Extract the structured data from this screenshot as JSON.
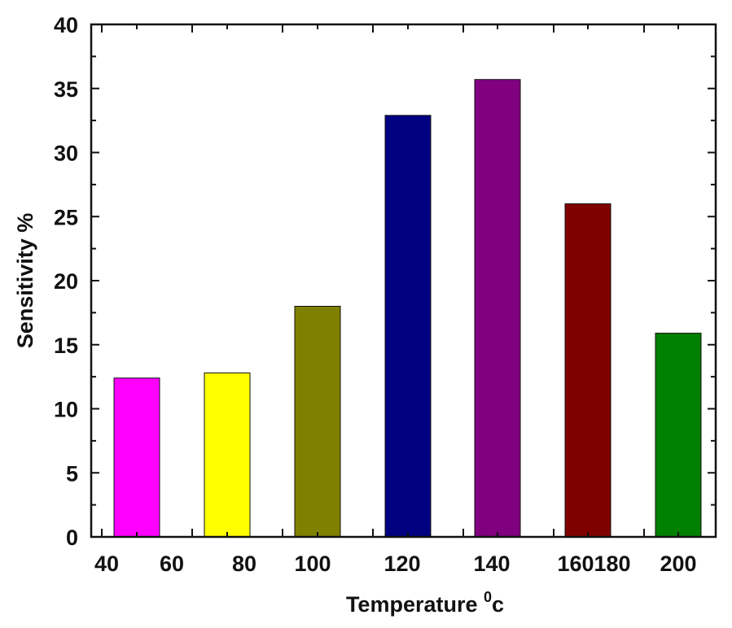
{
  "chart_data": {
    "type": "bar",
    "title": "",
    "xlabel": "Temperature",
    "xlabel_superscript": "0",
    "xlabel_suffix": "c",
    "ylabel": "Sensitivity %",
    "xlim": [
      40,
      215
    ],
    "ylim": [
      0,
      40
    ],
    "x_ticks": [
      40,
      60,
      80,
      100,
      120,
      140,
      160,
      180,
      200
    ],
    "y_ticks": [
      0,
      5,
      10,
      15,
      20,
      25,
      30,
      35,
      40
    ],
    "grid": false,
    "legend": "none",
    "bar_width": 10,
    "bars": [
      {
        "x": 50,
        "value": 12.4,
        "color": "#ff00ff"
      },
      {
        "x": 70,
        "value": 12.8,
        "color": "#ffff00"
      },
      {
        "x": 90,
        "value": 18.0,
        "color": "#808000"
      },
      {
        "x": 110,
        "value": 32.9,
        "color": "#000080"
      },
      {
        "x": 130,
        "value": 35.7,
        "color": "#800080"
      },
      {
        "x": 150,
        "value": 26.0,
        "color": "#800000"
      },
      {
        "x": 170,
        "value": 15.9,
        "color": "#008000"
      }
    ],
    "x_tick_positions": [
      40,
      50,
      70,
      90,
      110,
      130,
      150,
      170
    ],
    "x_tick_labels_positions": [
      {
        "label": "40",
        "x": 40
      },
      {
        "label": "60",
        "x": 50
      },
      {
        "label": "80",
        "x": 70
      },
      {
        "label": "100",
        "x": 90
      },
      {
        "label": "120",
        "x": 110
      },
      {
        "label": "140",
        "x": 130
      },
      {
        "label": "160",
        "x": 150
      },
      {
        "label": "180",
        "x": 170
      },
      {
        "label": "200",
        "x": 190
      }
    ]
  }
}
